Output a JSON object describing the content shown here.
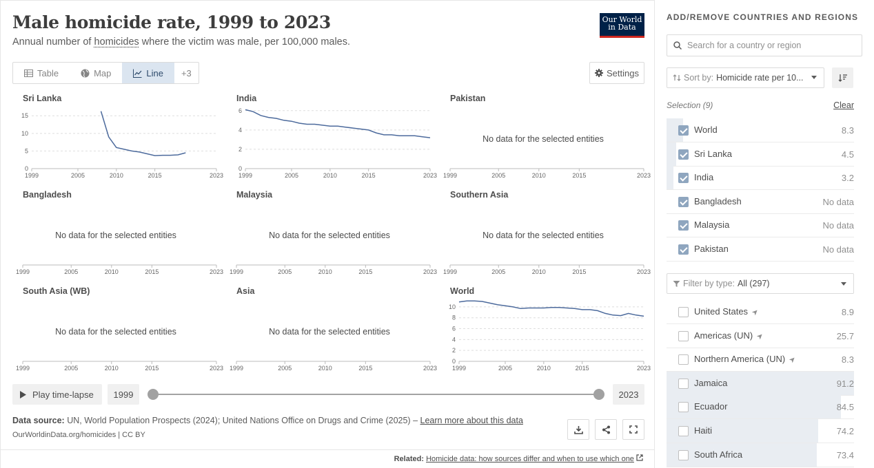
{
  "header": {
    "title": "Male homicide rate, 1999 to 2023",
    "subtitle_pre": "Annual number of ",
    "subtitle_link": "homicides",
    "subtitle_post": " where the victim was male, per 100,000 males.",
    "logo_line1": "Our World",
    "logo_line2": "in Data"
  },
  "tabs": [
    {
      "label": "Table",
      "icon": "table-icon"
    },
    {
      "label": "Map",
      "icon": "globe-icon"
    },
    {
      "label": "Line",
      "icon": "line-chart-icon",
      "active": true
    },
    {
      "label": "+3"
    }
  ],
  "settings_label": "Settings",
  "no_data_text": "No data for the selected entities",
  "line_color": "#4c6a9c",
  "chart_data": [
    {
      "type": "line",
      "title": "Sri Lanka",
      "x_ticks": [
        "1999",
        "2005",
        "2010",
        "2015",
        "2023"
      ],
      "y_ticks": [
        "0",
        "5",
        "10",
        "15"
      ],
      "ylim": [
        0,
        17
      ],
      "x": [
        2008,
        2009,
        2010,
        2011,
        2012,
        2013,
        2014,
        2015,
        2016,
        2017,
        2018,
        2019
      ],
      "y": [
        16.3,
        9.0,
        6.0,
        5.5,
        5.0,
        4.7,
        4.2,
        3.7,
        3.8,
        3.8,
        3.9,
        4.5
      ]
    },
    {
      "type": "line",
      "title": "India",
      "x_ticks": [
        "1999",
        "2005",
        "2010",
        "2015",
        "2023"
      ],
      "y_ticks": [
        "0",
        "2",
        "4",
        "6"
      ],
      "ylim": [
        0,
        6.2
      ],
      "x": [
        1999,
        2000,
        2001,
        2002,
        2003,
        2004,
        2005,
        2006,
        2007,
        2008,
        2009,
        2010,
        2011,
        2012,
        2013,
        2014,
        2015,
        2016,
        2017,
        2018,
        2019,
        2020,
        2021,
        2022,
        2023
      ],
      "y": [
        6.1,
        5.9,
        5.5,
        5.3,
        5.2,
        5.0,
        4.9,
        4.7,
        4.6,
        4.6,
        4.5,
        4.4,
        4.4,
        4.3,
        4.2,
        4.1,
        4.0,
        3.7,
        3.5,
        3.5,
        3.4,
        3.4,
        3.4,
        3.3,
        3.2
      ]
    },
    {
      "type": "line",
      "title": "Pakistan",
      "x_ticks": [
        "1999",
        "2005",
        "2010",
        "2015",
        "2023"
      ],
      "no_data": true,
      "x": [],
      "y": []
    },
    {
      "type": "line",
      "title": "Bangladesh",
      "x_ticks": [
        "1999",
        "2005",
        "2010",
        "2015",
        "2023"
      ],
      "no_data": true,
      "x": [],
      "y": []
    },
    {
      "type": "line",
      "title": "Malaysia",
      "x_ticks": [
        "1999",
        "2005",
        "2010",
        "2015",
        "2023"
      ],
      "no_data": true,
      "x": [],
      "y": []
    },
    {
      "type": "line",
      "title": "Southern Asia",
      "x_ticks": [
        "1999",
        "2005",
        "2010",
        "2015",
        "2023"
      ],
      "no_data": true,
      "x": [],
      "y": []
    },
    {
      "type": "line",
      "title": "South Asia (WB)",
      "x_ticks": [
        "1999",
        "2005",
        "2010",
        "2015",
        "2023"
      ],
      "no_data": true,
      "x": [],
      "y": []
    },
    {
      "type": "line",
      "title": "Asia",
      "x_ticks": [
        "1999",
        "2005",
        "2010",
        "2015",
        "2023"
      ],
      "no_data": true,
      "x": [],
      "y": []
    },
    {
      "type": "line",
      "title": "World",
      "x_ticks": [
        "1999",
        "2005",
        "2010",
        "2015",
        "2023"
      ],
      "y_ticks": [
        "0",
        "2",
        "4",
        "6",
        "8",
        "10"
      ],
      "ylim": [
        0,
        11
      ],
      "x": [
        1999,
        2000,
        2001,
        2002,
        2003,
        2004,
        2005,
        2006,
        2007,
        2008,
        2009,
        2010,
        2011,
        2012,
        2013,
        2014,
        2015,
        2016,
        2017,
        2018,
        2019,
        2020,
        2021,
        2022,
        2023
      ],
      "y": [
        10.9,
        11.1,
        11.1,
        11.0,
        10.7,
        10.4,
        10.2,
        10.0,
        9.7,
        9.8,
        9.8,
        9.8,
        9.9,
        9.9,
        9.8,
        9.7,
        9.5,
        9.5,
        9.3,
        8.8,
        8.5,
        8.4,
        8.8,
        8.5,
        8.3
      ]
    }
  ],
  "timeline": {
    "play_label": "Play time-lapse",
    "start_year": "1999",
    "end_year": "2023"
  },
  "footer": {
    "source_label": "Data source:",
    "source_text": " UN, World Population Prospects (2024); United Nations Office on Drugs and Crime (2025) – ",
    "learn_more": "Learn more about this data",
    "credit": "OurWorldinData.org/homicides | CC BY",
    "related_label": "Related:",
    "related_link": "Homicide data: how sources differ and when to use which one"
  },
  "sidebar": {
    "title": "ADD/REMOVE COUNTRIES AND REGIONS",
    "search_placeholder": "Search for a country or region",
    "sort_label": "Sort by:",
    "sort_value": "Homicide rate per 10...",
    "selection_label": "Selection (9)",
    "clear_label": "Clear",
    "filter_label": "Filter by type:",
    "filter_value": "All (297)",
    "selected": [
      {
        "name": "World",
        "value": "8.3",
        "bar": 0.09
      },
      {
        "name": "Sri Lanka",
        "value": "4.5",
        "bar": 0.05
      },
      {
        "name": "India",
        "value": "3.2",
        "bar": 0.035
      },
      {
        "name": "Bangladesh",
        "value": "No data",
        "bar": 0
      },
      {
        "name": "Malaysia",
        "value": "No data",
        "bar": 0
      },
      {
        "name": "Pakistan",
        "value": "No data",
        "bar": 0
      }
    ],
    "others": [
      {
        "name": "United States",
        "value": "8.9",
        "bar": 0,
        "locate": true
      },
      {
        "name": "Americas (UN)",
        "value": "25.7",
        "bar": 0,
        "locate": true
      },
      {
        "name": "Northern America (UN)",
        "value": "8.3",
        "bar": 0,
        "locate": true
      },
      {
        "name": "Jamaica",
        "value": "91.2",
        "bar": 1.0
      },
      {
        "name": "Ecuador",
        "value": "84.5",
        "bar": 0.93
      },
      {
        "name": "Haiti",
        "value": "74.2",
        "bar": 0.81
      },
      {
        "name": "South Africa",
        "value": "73.4",
        "bar": 0.8
      }
    ]
  }
}
